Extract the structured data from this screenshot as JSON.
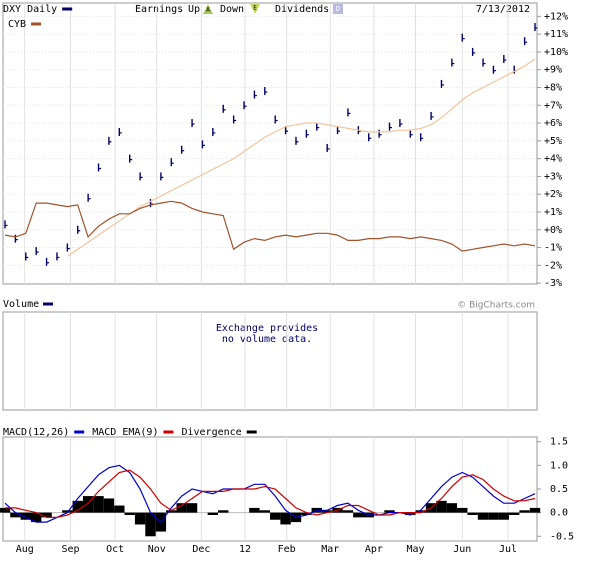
{
  "header": {
    "earnings": "Earnings",
    "up": "Up",
    "up_icon": "A",
    "down": "Down",
    "down_icon": "E",
    "dividends": "Dividends",
    "dividends_icon": "D",
    "date": "7/13/2012"
  },
  "volume_panel": {
    "title": "Volume",
    "credit": "© BigCharts.com",
    "message": [
      "Exchange provides",
      "no volume data."
    ]
  },
  "chart_data": [
    {
      "type": "line",
      "x": [
        0,
        1,
        2,
        3,
        4,
        5,
        6,
        7,
        8,
        9,
        10,
        11,
        12,
        13,
        14,
        15,
        16,
        17,
        18,
        19,
        20,
        21,
        22,
        23,
        24,
        25,
        26,
        27,
        28,
        29,
        30,
        31,
        32,
        33,
        34,
        35,
        36,
        37,
        38,
        39,
        40,
        41,
        42,
        43,
        44,
        45,
        46,
        47,
        48,
        49,
        50,
        51
      ],
      "xlim": [
        0,
        51
      ],
      "ylim": [
        -3.05,
        12.75
      ],
      "yticks": [
        {
          "value": 12,
          "label": "+12%"
        },
        {
          "value": 11,
          "label": "+11%"
        },
        {
          "value": 10,
          "label": "+10%"
        },
        {
          "value": 9,
          "label": "+9%"
        },
        {
          "value": 8,
          "label": "+8%"
        },
        {
          "value": 7,
          "label": "+7%"
        },
        {
          "value": 6,
          "label": "+6%"
        },
        {
          "value": 5,
          "label": "+5%"
        },
        {
          "value": 4,
          "label": "+4%"
        },
        {
          "value": 3,
          "label": "+3%"
        },
        {
          "value": 2,
          "label": "+2%"
        },
        {
          "value": 1,
          "label": "+1%"
        },
        {
          "value": 0,
          "label": "+0%"
        },
        {
          "value": -1,
          "label": "-1%"
        },
        {
          "value": -2,
          "label": "-2%"
        },
        {
          "value": -3,
          "label": "-3%"
        }
      ],
      "grid": true,
      "series": [
        {
          "name": "DXY Daily",
          "color": "#000066",
          "style": "ticks",
          "values": [
            0.3,
            -0.5,
            -1.5,
            -1.2,
            -1.8,
            -1.5,
            -1.0,
            0.0,
            1.8,
            3.5,
            5.0,
            5.5,
            4.0,
            3.0,
            1.5,
            3.0,
            3.8,
            4.5,
            6.0,
            4.8,
            5.5,
            6.8,
            6.2,
            7.0,
            7.6,
            7.8,
            6.2,
            5.6,
            5.0,
            5.4,
            5.8,
            4.6,
            5.6,
            6.6,
            5.6,
            5.2,
            5.4,
            5.8,
            6.0,
            5.4,
            5.2,
            6.4,
            8.2,
            9.4,
            10.8,
            10.0,
            9.4,
            9.0,
            9.6,
            9.0,
            10.6,
            11.4
          ]
        },
        {
          "color": "#f5c49a",
          "style": "line",
          "values": [
            null,
            null,
            null,
            null,
            null,
            null,
            -1.5,
            -1.1,
            -0.7,
            -0.3,
            0.1,
            0.5,
            0.9,
            1.3,
            1.6,
            1.9,
            2.2,
            2.5,
            2.8,
            3.1,
            3.4,
            3.7,
            4.0,
            4.4,
            4.8,
            5.2,
            5.5,
            5.8,
            5.9,
            6.0,
            6.0,
            5.9,
            5.8,
            5.7,
            5.6,
            5.5,
            5.5,
            5.5,
            5.6,
            5.6,
            5.7,
            5.9,
            6.3,
            6.8,
            7.3,
            7.7,
            8.0,
            8.3,
            8.6,
            8.9,
            9.2,
            9.6
          ]
        },
        {
          "name": "CYB",
          "color": "#a0522d",
          "style": "line",
          "values": [
            -0.3,
            -0.4,
            -0.2,
            1.5,
            1.5,
            1.4,
            1.3,
            1.4,
            -0.4,
            0.2,
            0.6,
            0.9,
            0.9,
            1.2,
            1.4,
            1.5,
            1.6,
            1.5,
            1.2,
            1.0,
            0.9,
            0.8,
            -1.1,
            -0.7,
            -0.5,
            -0.6,
            -0.4,
            -0.3,
            -0.4,
            -0.3,
            -0.2,
            -0.2,
            -0.3,
            -0.6,
            -0.6,
            -0.5,
            -0.5,
            -0.4,
            -0.4,
            -0.5,
            -0.4,
            -0.5,
            -0.6,
            -0.8,
            -1.2,
            -1.1,
            -1.0,
            -0.9,
            -0.8,
            -0.9,
            -0.8,
            -0.9
          ]
        }
      ]
    },
    {
      "type": "line",
      "x": [
        0,
        1,
        2,
        3,
        4,
        5,
        6,
        7,
        8,
        9,
        10,
        11,
        12,
        13,
        14,
        15,
        16,
        17,
        18,
        19,
        20,
        21,
        22,
        23,
        24,
        25,
        26,
        27,
        28,
        29,
        30,
        31,
        32,
        33,
        34,
        35,
        36,
        37,
        38,
        39,
        40,
        41,
        42,
        43,
        44,
        45,
        46,
        47,
        48,
        49,
        50,
        51
      ],
      "xlim": [
        0,
        51
      ],
      "xticks": [
        {
          "value": 1.9,
          "label": "Aug"
        },
        {
          "value": 6.3,
          "label": "Sep"
        },
        {
          "value": 10.6,
          "label": "Oct"
        },
        {
          "value": 14.6,
          "label": "Nov"
        },
        {
          "value": 18.9,
          "label": "Dec"
        },
        {
          "value": 23.1,
          "label": "12"
        },
        {
          "value": 27.1,
          "label": "Feb"
        },
        {
          "value": 31.3,
          "label": "Mar"
        },
        {
          "value": 35.5,
          "label": "Apr"
        },
        {
          "value": 39.5,
          "label": "May"
        },
        {
          "value": 44,
          "label": "Jun"
        },
        {
          "value": 48.4,
          "label": "Jul"
        }
      ],
      "ylim": [
        -0.6,
        1.6
      ],
      "yticks": [
        1.5,
        {
          "value": 1,
          "label": "1.0"
        },
        0.5,
        {
          "value": 0,
          "label": "0.0"
        },
        -0.5
      ],
      "series": [
        {
          "name": "MACD(12,26)",
          "color": "#0000cc",
          "style": "line",
          "values": [
            0.2,
            0.0,
            -0.1,
            -0.2,
            -0.2,
            -0.1,
            0.0,
            0.3,
            0.55,
            0.8,
            0.95,
            1.0,
            0.85,
            0.5,
            0.0,
            -0.2,
            0.1,
            0.35,
            0.5,
            0.45,
            0.4,
            0.5,
            0.5,
            0.5,
            0.6,
            0.6,
            0.35,
            0.05,
            -0.1,
            -0.05,
            0.05,
            0.05,
            0.15,
            0.2,
            0.05,
            -0.05,
            -0.05,
            0.0,
            0.0,
            -0.05,
            0.05,
            0.3,
            0.55,
            0.75,
            0.85,
            0.75,
            0.55,
            0.35,
            0.2,
            0.2,
            0.3,
            0.4
          ]
        },
        {
          "name": "MACD EMA(9)",
          "color": "#cc0000",
          "style": "line",
          "values": [
            0.1,
            0.1,
            0.05,
            0.0,
            -0.1,
            -0.1,
            -0.05,
            0.05,
            0.2,
            0.45,
            0.65,
            0.85,
            0.9,
            0.75,
            0.5,
            0.2,
            0.05,
            0.15,
            0.3,
            0.45,
            0.45,
            0.45,
            0.5,
            0.5,
            0.5,
            0.55,
            0.5,
            0.3,
            0.1,
            0.0,
            -0.05,
            0.0,
            0.05,
            0.15,
            0.15,
            0.05,
            -0.05,
            -0.05,
            0.0,
            0.0,
            0.0,
            0.1,
            0.3,
            0.55,
            0.75,
            0.8,
            0.7,
            0.5,
            0.35,
            0.25,
            0.25,
            0.3
          ]
        },
        {
          "name": "Divergence",
          "color": "#000000",
          "style": "histogram",
          "values": [
            0.1,
            -0.1,
            -0.15,
            -0.2,
            -0.1,
            0.0,
            0.05,
            0.25,
            0.35,
            0.35,
            0.3,
            0.15,
            -0.05,
            -0.25,
            -0.5,
            -0.4,
            0.05,
            0.2,
            0.2,
            0.0,
            -0.05,
            0.05,
            0.0,
            0.0,
            0.1,
            0.05,
            -0.15,
            -0.25,
            -0.2,
            -0.05,
            0.1,
            0.05,
            0.1,
            0.05,
            -0.1,
            -0.1,
            0.0,
            0.05,
            0.0,
            -0.05,
            0.05,
            0.2,
            0.25,
            0.2,
            0.1,
            -0.05,
            -0.15,
            -0.15,
            -0.15,
            -0.05,
            0.05,
            0.1
          ]
        }
      ]
    }
  ]
}
